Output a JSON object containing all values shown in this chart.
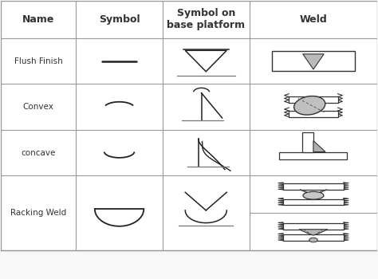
{
  "columns": [
    "Name",
    "Symbol",
    "Symbol on\nbase platform",
    "Weld"
  ],
  "rows": [
    "Flush Finish",
    "Convex",
    "concave",
    "Racking Weld"
  ],
  "bg_color": "#f8f8f8",
  "line_color": "#999999",
  "text_color": "#333333",
  "header_fontsize": 9,
  "cell_fontsize": 7.5,
  "COL": [
    0.0,
    0.2,
    0.43,
    0.66,
    1.0
  ],
  "ROWS": [
    1.0,
    0.865,
    0.7,
    0.535,
    0.37,
    0.1
  ]
}
